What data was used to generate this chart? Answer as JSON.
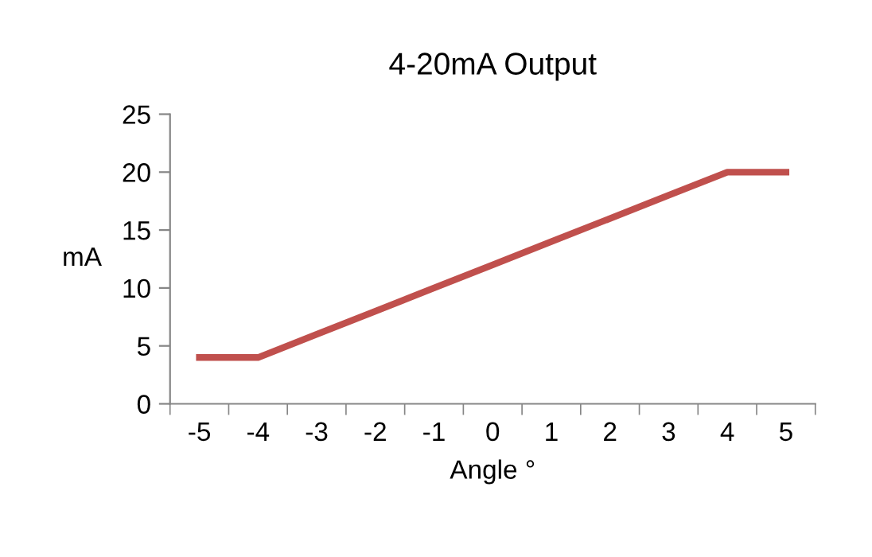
{
  "chart_data": {
    "type": "line",
    "title": "4-20mA Output",
    "xlabel": "Angle °",
    "ylabel": "mA",
    "categories": [
      "-5",
      "-4",
      "-3",
      "-2",
      "-1",
      "0",
      "1",
      "2",
      "3",
      "4",
      "5"
    ],
    "series": [
      {
        "color": "#c0504d",
        "values": [
          4,
          4,
          6,
          8,
          10,
          12,
          14,
          16,
          18,
          20,
          20
        ]
      }
    ],
    "ylim": [
      0,
      25
    ],
    "yticks": [
      0,
      5,
      10,
      15,
      20,
      25
    ],
    "grid": false,
    "legend": false,
    "marker": "none",
    "line_style": "solid"
  }
}
